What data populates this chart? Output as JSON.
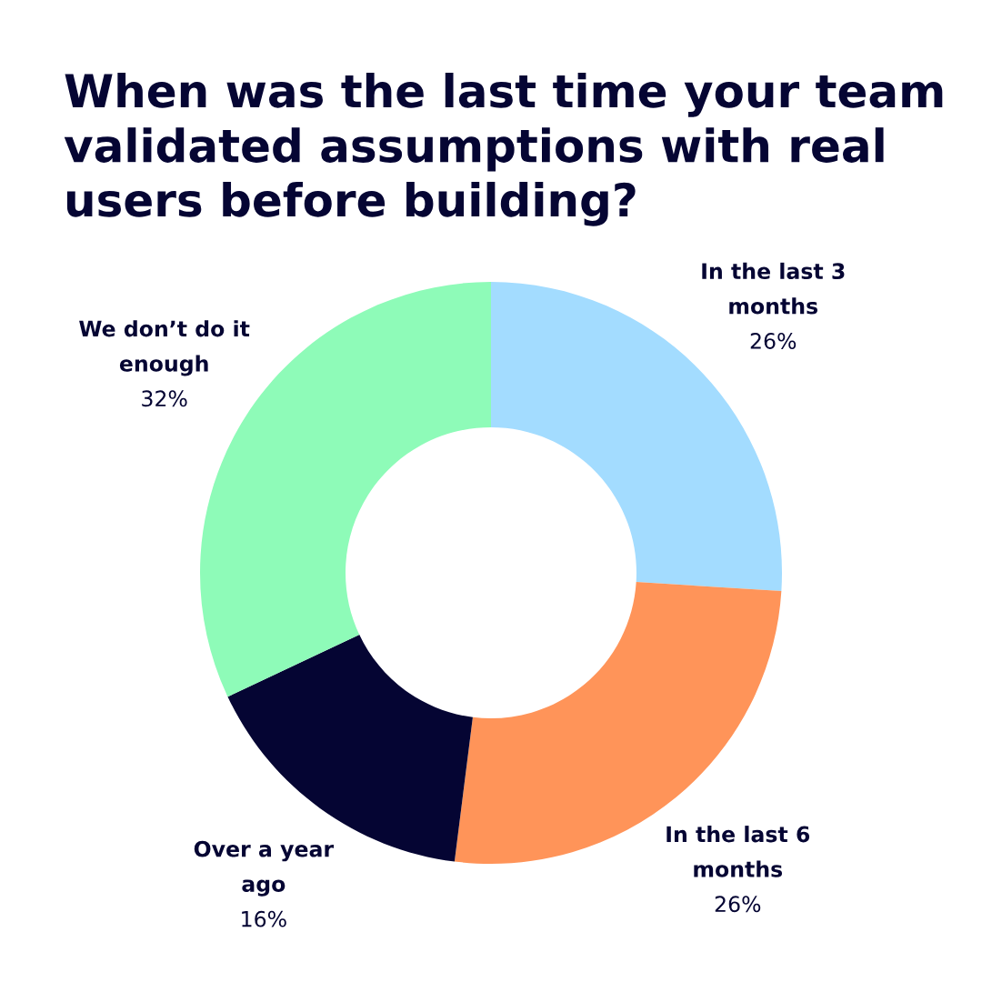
{
  "chart_data": {
    "type": "donut",
    "title": "When was the last time your team validated assumptions with real users before building?",
    "categories": [
      "In the last 3 months",
      "In the last 6 months",
      "Over a year ago",
      "We don’t do it enough"
    ],
    "values": [
      26,
      26,
      16,
      32
    ],
    "colors": [
      "#a3dcff",
      "#ff9459",
      "#050533",
      "#8efbb8"
    ],
    "value_labels": [
      "26%",
      "26%",
      "16%",
      "32%"
    ],
    "legend": false
  }
}
